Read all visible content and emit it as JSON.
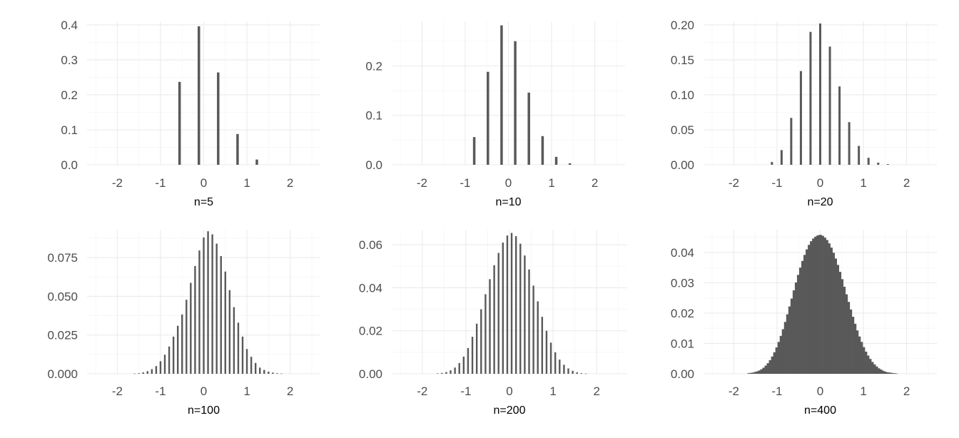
{
  "chart_data": [
    {
      "type": "bar",
      "title": "",
      "xlabel": "n=5",
      "ylabel": "",
      "n": 5,
      "xlim": [
        -2.7,
        2.7
      ],
      "ylim": [
        0,
        0.41
      ],
      "x_ticks": [
        -2,
        -1,
        0,
        1,
        2
      ],
      "y_ticks": [
        "0.0",
        "0.1",
        "0.2",
        "0.3",
        "0.4"
      ],
      "grid": true,
      "bar_color": "#595959",
      "x": [
        -0.559,
        -0.112,
        0.335,
        0.783,
        1.23
      ],
      "values": [
        0.237,
        0.396,
        0.264,
        0.088,
        0.015
      ]
    },
    {
      "type": "bar",
      "title": "",
      "xlabel": "n=10",
      "ylabel": "",
      "n": 10,
      "xlim": [
        -2.7,
        2.7
      ],
      "ylim": [
        0,
        0.29
      ],
      "x_ticks": [
        -2,
        -1,
        0,
        1,
        2
      ],
      "y_ticks": [
        "0.0",
        "0.1",
        "0.2"
      ],
      "grid": true,
      "bar_color": "#595959",
      "x": [
        -0.791,
        -0.474,
        -0.158,
        0.158,
        0.474,
        0.791,
        1.107,
        1.423
      ],
      "values": [
        0.056,
        0.188,
        0.282,
        0.25,
        0.146,
        0.058,
        0.016,
        0.003
      ]
    },
    {
      "type": "bar",
      "title": "",
      "xlabel": "n=20",
      "ylabel": "",
      "n": 20,
      "xlim": [
        -2.7,
        2.7
      ],
      "ylim": [
        0,
        0.205
      ],
      "x_ticks": [
        -2,
        -1,
        0,
        1,
        2
      ],
      "y_ticks": [
        "0.00",
        "0.05",
        "0.10",
        "0.15",
        "0.20"
      ],
      "grid": true,
      "bar_color": "#595959",
      "x": [
        -1.118,
        -0.894,
        -0.671,
        -0.447,
        -0.224,
        0.0,
        0.224,
        0.447,
        0.671,
        0.894,
        1.118,
        1.342,
        1.565
      ],
      "values": [
        0.004,
        0.021,
        0.067,
        0.134,
        0.19,
        0.202,
        0.169,
        0.112,
        0.061,
        0.027,
        0.01,
        0.003,
        0.001
      ]
    },
    {
      "type": "bar",
      "title": "",
      "xlabel": "n=100",
      "ylabel": "",
      "n": 100,
      "xlim": [
        -2.7,
        2.7
      ],
      "ylim": [
        0,
        0.093
      ],
      "x_ticks": [
        -2,
        -1,
        0,
        1,
        2
      ],
      "y_ticks": [
        "0.000",
        "0.025",
        "0.050",
        "0.075"
      ],
      "grid": true,
      "bar_color": "#595959",
      "x": [
        -1.6,
        -1.5,
        -1.4,
        -1.3,
        -1.2,
        -1.1,
        -1.0,
        -0.9,
        -0.8,
        -0.7,
        -0.6,
        -0.5,
        -0.4,
        -0.3,
        -0.2,
        -0.1,
        0.0,
        0.1,
        0.2,
        0.3,
        0.4,
        0.5,
        0.6,
        0.7,
        0.8,
        0.9,
        1.0,
        1.1,
        1.2,
        1.3,
        1.4,
        1.5,
        1.6,
        1.7,
        1.8
      ],
      "values": [
        0.0002,
        0.0004,
        0.0009,
        0.0017,
        0.003,
        0.005,
        0.0081,
        0.0123,
        0.0176,
        0.024,
        0.031,
        0.0383,
        0.0478,
        0.0587,
        0.0696,
        0.0796,
        0.088,
        0.092,
        0.09,
        0.084,
        0.076,
        0.066,
        0.054,
        0.043,
        0.033,
        0.024,
        0.016,
        0.011,
        0.007,
        0.004,
        0.0025,
        0.0014,
        0.0008,
        0.0004,
        0.0002
      ]
    },
    {
      "type": "bar",
      "title": "",
      "xlabel": "n=200",
      "ylabel": "",
      "n": 200,
      "xlim": [
        -2.7,
        2.7
      ],
      "ylim": [
        0,
        0.067
      ],
      "x_ticks": [
        -2,
        -1,
        0,
        1,
        2
      ],
      "y_ticks": [
        "0.00",
        "0.02",
        "0.04",
        "0.06"
      ],
      "grid": true,
      "bar_color": "#595959",
      "x": [
        -1.65,
        -1.55,
        -1.45,
        -1.35,
        -1.25,
        -1.15,
        -1.05,
        -0.95,
        -0.85,
        -0.75,
        -0.65,
        -0.55,
        -0.45,
        -0.35,
        -0.25,
        -0.15,
        -0.05,
        0.05,
        0.15,
        0.25,
        0.35,
        0.45,
        0.55,
        0.65,
        0.75,
        0.85,
        0.95,
        1.05,
        1.15,
        1.25,
        1.35,
        1.45,
        1.55,
        1.65,
        1.75
      ],
      "values": [
        0.0002,
        0.0004,
        0.0008,
        0.0016,
        0.0029,
        0.005,
        0.008,
        0.012,
        0.0172,
        0.0233,
        0.03,
        0.037,
        0.044,
        0.0505,
        0.0562,
        0.061,
        0.0643,
        0.0655,
        0.064,
        0.0605,
        0.055,
        0.0485,
        0.041,
        0.0337,
        0.0265,
        0.02,
        0.0145,
        0.01,
        0.0066,
        0.0042,
        0.0025,
        0.0014,
        0.0007,
        0.0003,
        0.0001
      ]
    },
    {
      "type": "bar",
      "title": "",
      "xlabel": "n=400",
      "ylabel": "",
      "n": 400,
      "xlim": [
        -2.7,
        2.7
      ],
      "ylim": [
        0,
        0.0475
      ],
      "x_ticks": [
        -2,
        -1,
        0,
        1,
        2
      ],
      "y_ticks": [
        "0.00",
        "0.01",
        "0.02",
        "0.03",
        "0.04"
      ],
      "grid": true,
      "bar_color": "#595959",
      "x": [
        -1.65,
        -1.6,
        -1.55,
        -1.5,
        -1.45,
        -1.4,
        -1.35,
        -1.3,
        -1.25,
        -1.2,
        -1.15,
        -1.1,
        -1.05,
        -1.0,
        -0.95,
        -0.9,
        -0.85,
        -0.8,
        -0.75,
        -0.7,
        -0.65,
        -0.6,
        -0.55,
        -0.5,
        -0.45,
        -0.4,
        -0.35,
        -0.3,
        -0.25,
        -0.2,
        -0.15,
        -0.1,
        -0.05,
        0.0,
        0.05,
        0.1,
        0.15,
        0.2,
        0.25,
        0.3,
        0.35,
        0.4,
        0.45,
        0.5,
        0.55,
        0.6,
        0.65,
        0.7,
        0.75,
        0.8,
        0.85,
        0.9,
        0.95,
        1.0,
        1.05,
        1.1,
        1.15,
        1.2,
        1.25,
        1.3,
        1.35,
        1.4,
        1.45,
        1.5,
        1.55,
        1.6,
        1.65,
        1.7,
        1.75
      ],
      "values": [
        0.0002,
        0.0003,
        0.0004,
        0.0006,
        0.0008,
        0.0011,
        0.0015,
        0.002,
        0.0027,
        0.0035,
        0.0045,
        0.0057,
        0.0071,
        0.0087,
        0.0105,
        0.0125,
        0.0147,
        0.0171,
        0.0196,
        0.0222,
        0.0248,
        0.0275,
        0.0301,
        0.0326,
        0.035,
        0.0372,
        0.0392,
        0.041,
        0.0425,
        0.0437,
        0.0446,
        0.0452,
        0.0456,
        0.0458,
        0.0455,
        0.0449,
        0.0441,
        0.043,
        0.0416,
        0.0399,
        0.038,
        0.0359,
        0.0336,
        0.0312,
        0.0287,
        0.0262,
        0.0237,
        0.0212,
        0.0188,
        0.0165,
        0.0143,
        0.0123,
        0.0105,
        0.0088,
        0.0073,
        0.006,
        0.0049,
        0.0039,
        0.0031,
        0.0024,
        0.0018,
        0.0014,
        0.001,
        0.0007,
        0.0005,
        0.0004,
        0.0003,
        0.0002,
        0.0001
      ]
    }
  ]
}
